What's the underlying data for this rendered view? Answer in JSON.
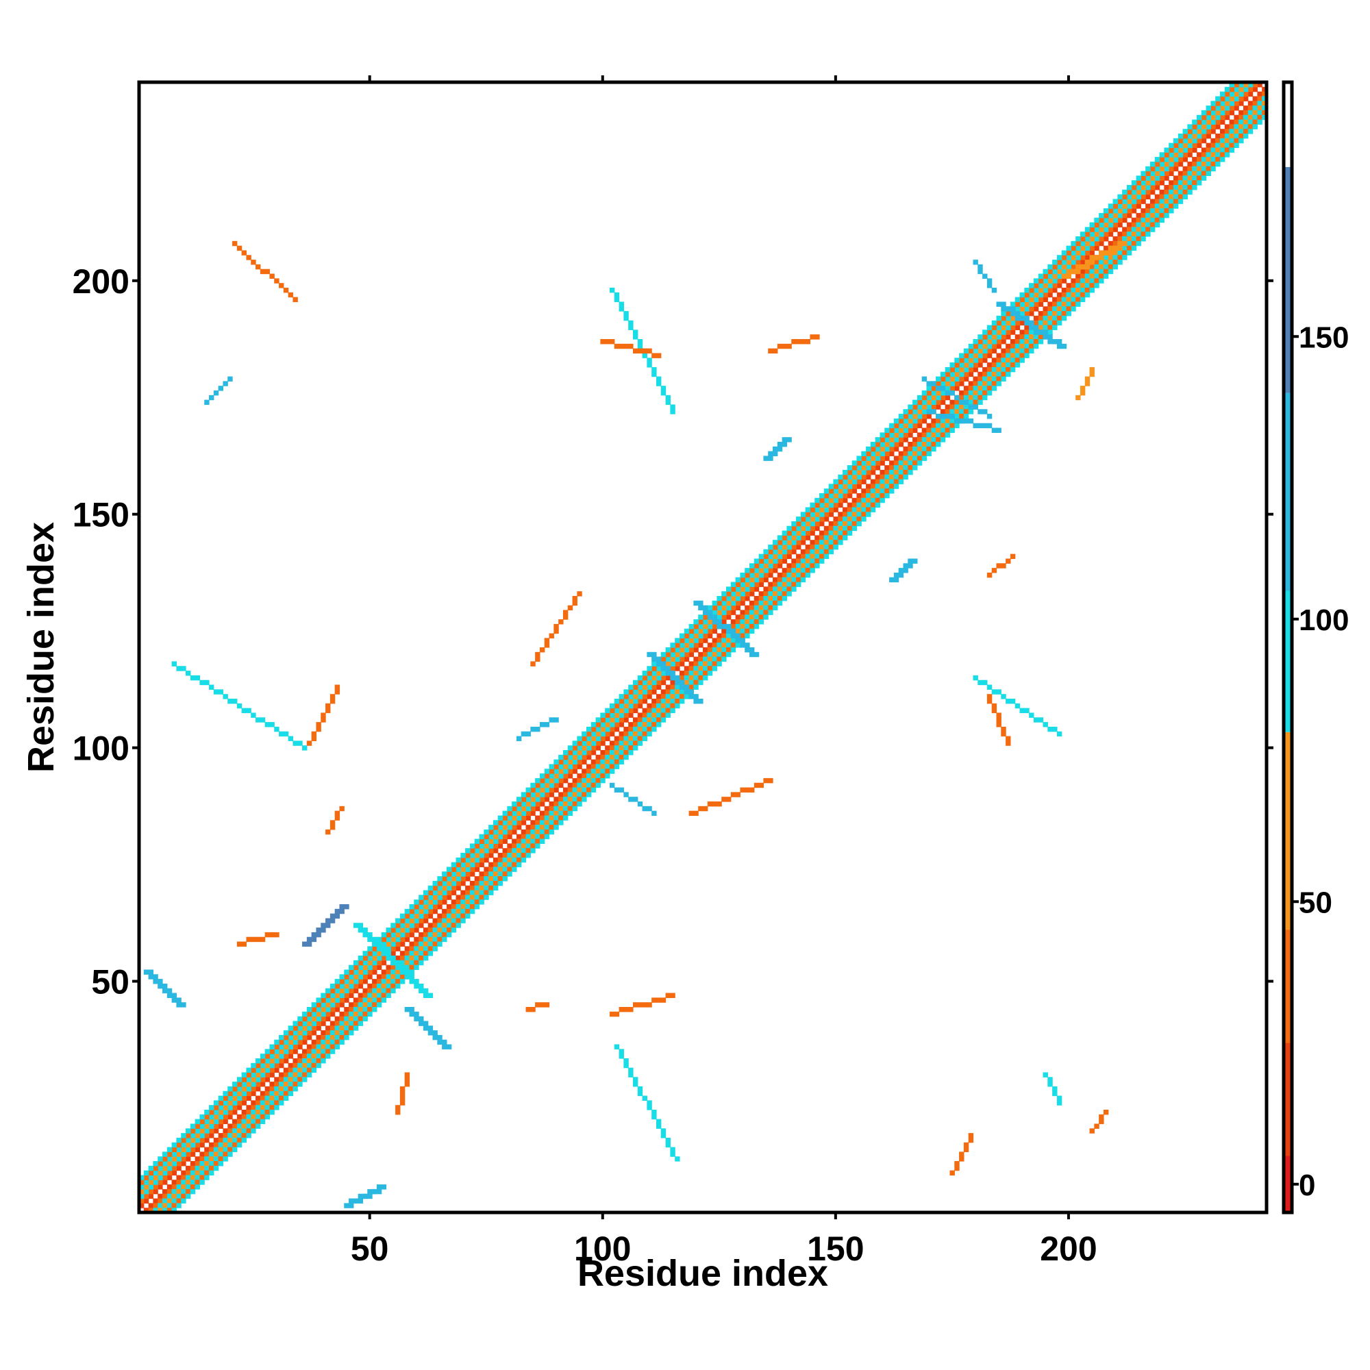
{
  "chart_data": {
    "type": "heatmap",
    "title": "",
    "xlabel": "Residue index",
    "ylabel": "Residue index",
    "xlim": [
      1,
      242
    ],
    "ylim": [
      1,
      242
    ],
    "x_ticks": [
      50,
      100,
      150,
      200
    ],
    "y_ticks": [
      50,
      100,
      150,
      200
    ],
    "grid": false,
    "legend": "colorbar-right",
    "colorbar": {
      "ticks": [
        0,
        50,
        100,
        150
      ],
      "range": [
        -5,
        195
      ],
      "bands": [
        {
          "from": -5,
          "to": 5,
          "color": "#e31a1c"
        },
        {
          "from": 5,
          "to": 25,
          "color": "#e8410f"
        },
        {
          "from": 25,
          "to": 45,
          "color": "#f36a0f"
        },
        {
          "from": 45,
          "to": 80,
          "color": "#f7941d"
        },
        {
          "from": 80,
          "to": 105,
          "color": "#19dde6"
        },
        {
          "from": 105,
          "to": 140,
          "color": "#2bb8e0"
        },
        {
          "from": 140,
          "to": 180,
          "color": "#4d81b8"
        },
        {
          "from": 180,
          "to": 195,
          "color": "#ffffff"
        }
      ]
    },
    "diagonal_band": {
      "x_range": [
        2,
        242
      ],
      "offsets": [
        {
          "d": 1,
          "value": 20
        },
        {
          "d": 2,
          "value": 42
        },
        {
          "d": 3,
          "value": 92
        },
        {
          "d": 4,
          "value": 60
        },
        {
          "d": 5,
          "value": 100
        },
        {
          "d": 6,
          "value": 40
        },
        {
          "d": 7,
          "value": 95
        }
      ]
    },
    "contact_segments": [
      {
        "x0": 36,
        "y0": 58,
        "x1": 44,
        "y1": 66,
        "value": 150,
        "width": 2
      },
      {
        "x0": 47,
        "y0": 62,
        "x1": 55,
        "y1": 54,
        "value": 95,
        "width": 2
      },
      {
        "x0": 55,
        "y0": 54,
        "x1": 62,
        "y1": 47,
        "value": 95,
        "width": 2
      },
      {
        "x0": 58,
        "y0": 44,
        "x1": 66,
        "y1": 36,
        "value": 130,
        "width": 2
      },
      {
        "x0": 45,
        "y0": 2,
        "x1": 52,
        "y1": 6,
        "value": 110,
        "width": 2
      },
      {
        "x0": 2,
        "y0": 52,
        "x1": 9,
        "y1": 45,
        "value": 110,
        "width": 2
      },
      {
        "x0": 22,
        "y0": 58,
        "x1": 30,
        "y1": 60,
        "value": 40,
        "width": 1
      },
      {
        "x0": 56,
        "y0": 22,
        "x1": 58,
        "y1": 30,
        "value": 40,
        "width": 1
      },
      {
        "x0": 8,
        "y0": 118,
        "x1": 36,
        "y1": 100,
        "value": 92,
        "width": 1
      },
      {
        "x0": 37,
        "y0": 101,
        "x1": 43,
        "y1": 113,
        "value": 40,
        "width": 1
      },
      {
        "x0": 41,
        "y0": 82,
        "x1": 44,
        "y1": 87,
        "value": 40,
        "width": 1
      },
      {
        "x0": 102,
        "y0": 43,
        "x1": 115,
        "y1": 47,
        "value": 40,
        "width": 1
      },
      {
        "x0": 103,
        "y0": 36,
        "x1": 116,
        "y1": 12,
        "value": 92,
        "width": 1
      },
      {
        "x0": 84,
        "y0": 44,
        "x1": 88,
        "y1": 45,
        "value": 40,
        "width": 1
      },
      {
        "x0": 82,
        "y0": 102,
        "x1": 90,
        "y1": 106,
        "value": 110,
        "width": 1
      },
      {
        "x0": 85,
        "y0": 118,
        "x1": 95,
        "y1": 133,
        "value": 30,
        "width": 1
      },
      {
        "x0": 102,
        "y0": 92,
        "x1": 111,
        "y1": 86,
        "value": 110,
        "width": 1
      },
      {
        "x0": 119,
        "y0": 86,
        "x1": 136,
        "y1": 93,
        "value": 30,
        "width": 1
      },
      {
        "x0": 120,
        "y0": 131,
        "x1": 132,
        "y1": 120,
        "value": 110,
        "width": 2
      },
      {
        "x0": 110,
        "y0": 120,
        "x1": 120,
        "y1": 110,
        "value": 110,
        "width": 2
      },
      {
        "x0": 102,
        "y0": 198,
        "x1": 115,
        "y1": 172,
        "value": 92,
        "width": 1
      },
      {
        "x0": 100,
        "y0": 187,
        "x1": 112,
        "y1": 184,
        "value": 40,
        "width": 1
      },
      {
        "x0": 21,
        "y0": 208,
        "x1": 34,
        "y1": 196,
        "value": 40,
        "width": 1
      },
      {
        "x0": 15,
        "y0": 174,
        "x1": 20,
        "y1": 179,
        "value": 120,
        "width": 1
      },
      {
        "x0": 136,
        "y0": 185,
        "x1": 146,
        "y1": 188,
        "value": 30,
        "width": 1
      },
      {
        "x0": 135,
        "y0": 162,
        "x1": 139,
        "y1": 166,
        "value": 110,
        "width": 2
      },
      {
        "x0": 162,
        "y0": 136,
        "x1": 166,
        "y1": 140,
        "value": 110,
        "width": 2
      },
      {
        "x0": 183,
        "y0": 137,
        "x1": 188,
        "y1": 141,
        "value": 40,
        "width": 1
      },
      {
        "x0": 180,
        "y0": 115,
        "x1": 198,
        "y1": 103,
        "value": 100,
        "width": 1
      },
      {
        "x0": 183,
        "y0": 111,
        "x1": 187,
        "y1": 101,
        "value": 40,
        "width": 1
      },
      {
        "x0": 175,
        "y0": 9,
        "x1": 179,
        "y1": 17,
        "value": 30,
        "width": 1
      },
      {
        "x0": 195,
        "y0": 30,
        "x1": 198,
        "y1": 24,
        "value": 95,
        "width": 1
      },
      {
        "x0": 205,
        "y0": 18,
        "x1": 208,
        "y1": 22,
        "value": 30,
        "width": 1
      },
      {
        "x0": 170,
        "y0": 172,
        "x1": 185,
        "y1": 168,
        "value": 110,
        "width": 1
      },
      {
        "x0": 169,
        "y0": 179,
        "x1": 183,
        "y1": 171,
        "value": 110,
        "width": 1
      },
      {
        "x0": 185,
        "y0": 195,
        "x1": 198,
        "y1": 186,
        "value": 110,
        "width": 2
      },
      {
        "x0": 180,
        "y0": 204,
        "x1": 184,
        "y1": 198,
        "value": 110,
        "width": 1
      },
      {
        "x0": 202,
        "y0": 175,
        "x1": 205,
        "y1": 181,
        "value": 60,
        "width": 1
      },
      {
        "x0": 199,
        "y0": 201,
        "x1": 211,
        "y1": 208,
        "value": 60,
        "width": 2
      }
    ]
  }
}
